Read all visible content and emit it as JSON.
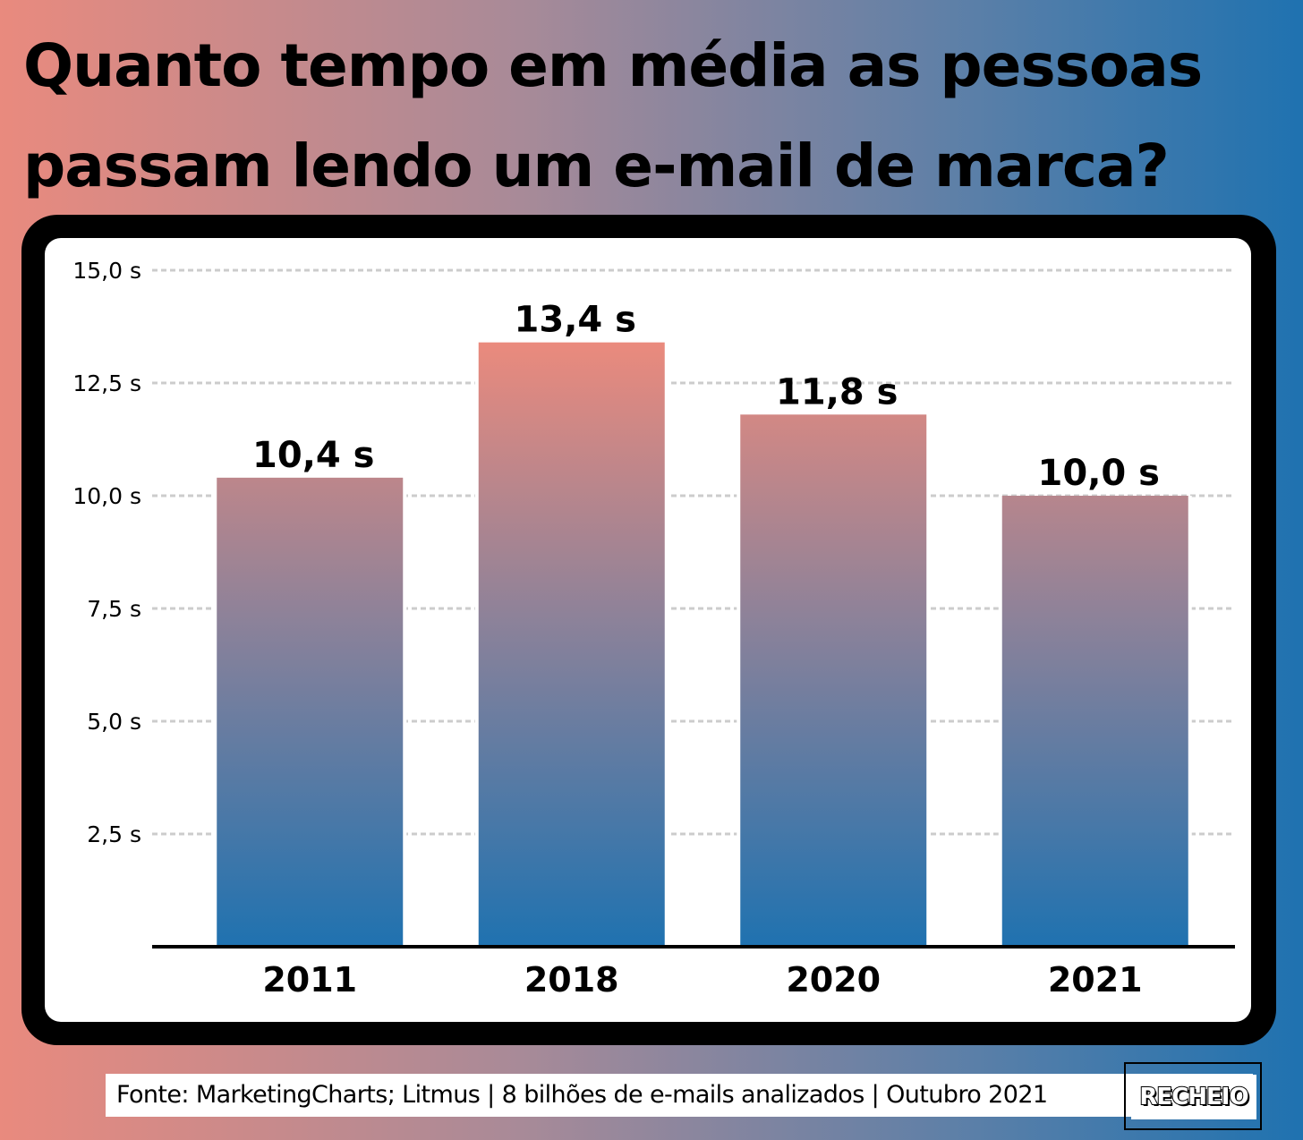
{
  "header": {
    "title_line1": "Quanto tempo em média as pessoas",
    "title_line2": "passam lendo um e-mail de marca?"
  },
  "footer": {
    "source": "Fonte: MarketingCharts; Litmus | 8 bilhões de e-mails analizados | Outubro 2021",
    "logo": "RECHEIO"
  },
  "colors": {
    "bar_top": "#ea8a7d",
    "bar_mid": "#8e8299",
    "bar_bottom": "#1f72b0",
    "grid": "#cccccc",
    "axis": "#000000"
  },
  "chart_data": {
    "type": "bar",
    "categories": [
      "2011",
      "2018",
      "2020",
      "2021"
    ],
    "values": [
      10.4,
      13.4,
      11.8,
      10.0
    ],
    "value_labels": [
      "10,4 s",
      "13,4 s",
      "11,8 s",
      "10,0 s"
    ],
    "ylim": [
      0,
      15
    ],
    "yticks": [
      2.5,
      5.0,
      7.5,
      10.0,
      12.5,
      15.0
    ],
    "ytick_labels": [
      "2,5 s",
      "5,0 s",
      "7,5 s",
      "10,0 s",
      "12,5 s",
      "15,0 s"
    ],
    "grid": true,
    "grid_style": "dashed",
    "legend": false,
    "title": "",
    "xlabel": "",
    "ylabel": ""
  }
}
